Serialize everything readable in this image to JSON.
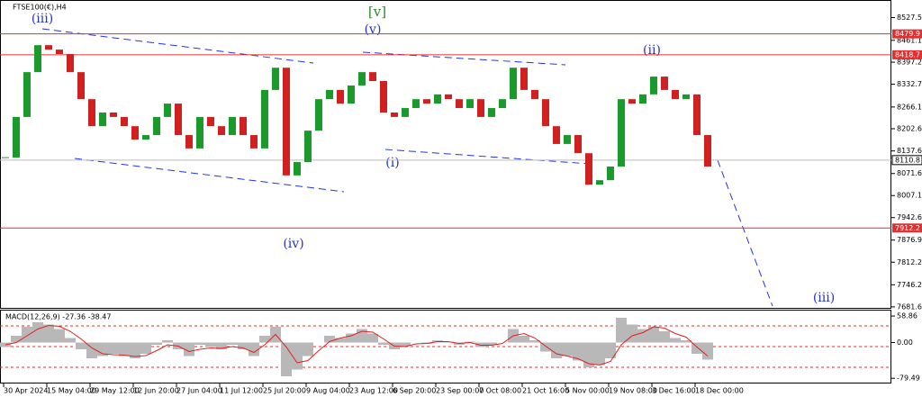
{
  "chart_data": {
    "type": "candlestick",
    "title": "FTSE100(€),H4",
    "categories": [
      "30 Apr 2024",
      null,
      null,
      null,
      "15 May 04:00",
      null,
      null,
      null,
      "29 May 12:00",
      null,
      null,
      null,
      "12 Jun 20:00",
      null,
      null,
      null,
      "27 Jun 04:00",
      null,
      null,
      null,
      "11 Jul 12:00",
      null,
      null,
      null,
      "25 Jul 20:00",
      null,
      null,
      null,
      "9 Aug 04:00",
      null,
      null,
      null,
      "23 Aug 12:00",
      null,
      null,
      null,
      "6 Sep 20:00",
      null,
      null,
      null,
      "23 Sep 00:00",
      null,
      null,
      null,
      "7 Oct 08:00",
      null,
      null,
      null,
      "21 Oct 16:00",
      null,
      null,
      null,
      "5 Nov 00:00",
      null,
      null,
      null,
      "19 Nov 08:00",
      null,
      null,
      null,
      "3 Dec 16:00",
      null,
      null,
      null,
      "18 Dec 00:00",
      null
    ],
    "close": [
      8118,
      8237,
      8368,
      8447,
      8434,
      8421,
      8368,
      8289,
      8210,
      8250,
      8237,
      8210,
      8171,
      8184,
      8237,
      8276,
      8184,
      8145,
      8237,
      8210,
      8184,
      8237,
      8184,
      8145,
      8316,
      8381,
      8066,
      8105,
      8197,
      8289,
      8316,
      8276,
      8329,
      8368,
      8342,
      8250,
      8237,
      8263,
      8289,
      8276,
      8303,
      8289,
      8263,
      8289,
      8237,
      8263,
      8289,
      8381,
      8316,
      8289,
      8210,
      8158,
      8184,
      8131,
      8039,
      8052,
      8092,
      8289,
      8276,
      8303,
      8355,
      8316,
      8289,
      8303,
      8184,
      8092
    ],
    "up_color": "#1a9a2a",
    "down_color": "#d02020",
    "ylim": [
      7676,
      8579
    ],
    "yticks": [
      8527.5,
      8461.1,
      8397.2,
      8332.7,
      8266.1,
      8202.6,
      8137.6,
      8071.6,
      8007.1,
      7942.6,
      7876.9,
      7812.2,
      7746.2,
      7681.6
    ],
    "levels": [
      8479.9,
      8418.7,
      7912.2
    ],
    "level_color": "#e03030",
    "last_price": 8110.8,
    "annotations": [
      "(iii)",
      "[v]",
      "(v)",
      "(ii)",
      "(i)",
      "(iv)",
      "(iii)"
    ],
    "macd": {
      "label": "MACD(12,26,9) -27.36 -38.47",
      "histogram": [
        -10,
        15,
        35,
        45,
        40,
        30,
        10,
        -15,
        -35,
        -30,
        -25,
        -30,
        -35,
        -25,
        -5,
        5,
        -15,
        -30,
        -5,
        -10,
        -15,
        -5,
        -15,
        -30,
        15,
        35,
        -75,
        -60,
        -30,
        0,
        15,
        10,
        20,
        30,
        20,
        -5,
        -15,
        -8,
        0,
        -3,
        5,
        2,
        -5,
        2,
        -10,
        -5,
        0,
        30,
        15,
        5,
        -20,
        -35,
        -30,
        -40,
        -55,
        -50,
        -35,
        55,
        40,
        30,
        35,
        25,
        10,
        5,
        -25,
        -38
      ],
      "signal": [
        -5,
        0,
        15,
        30,
        38,
        36,
        25,
        8,
        -12,
        -25,
        -27,
        -28,
        -31,
        -29,
        -18,
        -5,
        -8,
        -20,
        -15,
        -12,
        -13,
        -9,
        -12,
        -22,
        -5,
        18,
        -10,
        -45,
        -40,
        -18,
        2,
        10,
        15,
        25,
        23,
        8,
        -8,
        -9,
        -3,
        -2,
        2,
        2,
        -2,
        0,
        -6,
        -6,
        -2,
        15,
        20,
        10,
        -8,
        -25,
        -30,
        -36,
        -47,
        -50,
        -42,
        -5,
        15,
        22,
        35,
        32,
        20,
        12,
        -10,
        -30
      ],
      "histogram_color": "#b8b8b8",
      "signal_color": "#e02020",
      "ylim": [
        -91,
        71
      ],
      "yticks": [
        58.86,
        {
          "value": 0,
          "label": "0.00"
        },
        -79.49
      ]
    }
  }
}
